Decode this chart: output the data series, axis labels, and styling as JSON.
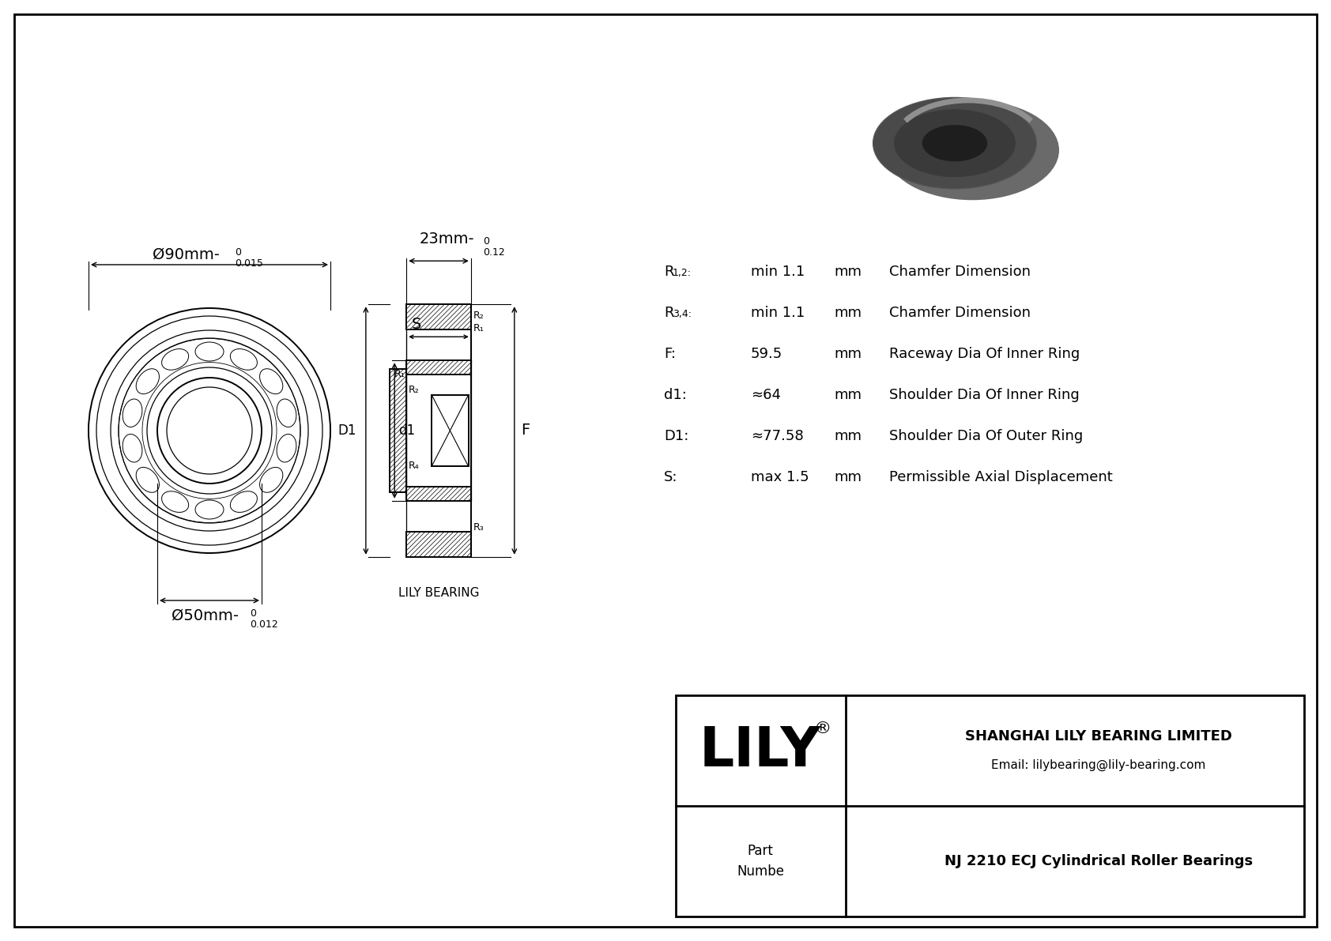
{
  "bg_color": "#ffffff",
  "border_color": "#000000",
  "title": "NJ 2210 ECJ Cylindrical Roller Bearings",
  "company": "SHANGHAI LILY BEARING LIMITED",
  "email": "Email: lilybearing@lily-bearing.com",
  "outer_dim": "Ø90mm-",
  "outer_sup": "0",
  "outer_sub": "0.015",
  "inner_dim": "Ø50mm-",
  "inner_sup": "0",
  "inner_sub": "0.012",
  "width_dim": "23mm-",
  "width_sup": "0",
  "width_sub": "0.12",
  "params": [
    {
      "symbol": "R1,2:",
      "value": "min 1.1",
      "unit": "mm",
      "desc": "Chamfer Dimension"
    },
    {
      "symbol": "R3,4:",
      "value": "min 1.1",
      "unit": "mm",
      "desc": "Chamfer Dimension"
    },
    {
      "symbol": "F:",
      "value": "59.5",
      "unit": "mm",
      "desc": "Raceway Dia Of Inner Ring"
    },
    {
      "symbol": "d1:",
      "value": "≈64",
      "unit": "mm",
      "desc": "Shoulder Dia Of Inner Ring"
    },
    {
      "symbol": "D1:",
      "value": "≈77.58",
      "unit": "mm",
      "desc": "Shoulder Dia Of Outer Ring"
    },
    {
      "symbol": "S:",
      "value": "max 1.5",
      "unit": "mm",
      "desc": "Permissible Axial Displacement"
    }
  ]
}
